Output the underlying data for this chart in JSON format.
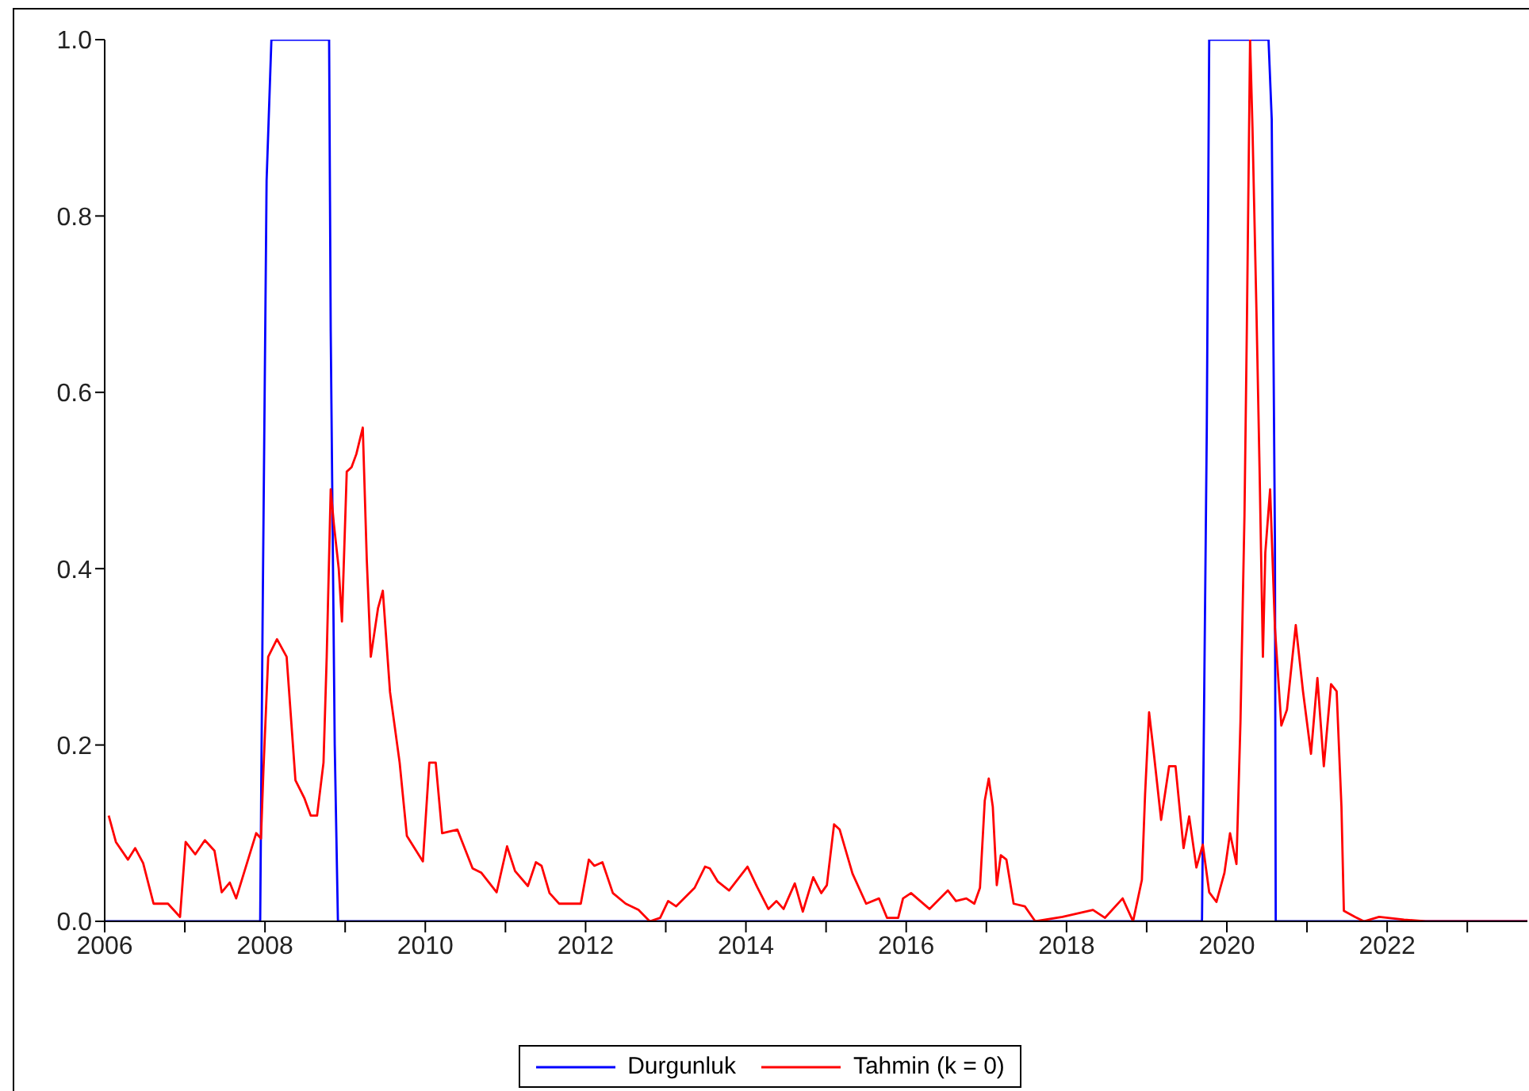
{
  "chart_data": {
    "type": "line",
    "xlim": [
      2006,
      2023.75
    ],
    "xticks": [
      2006,
      {
        "value": 2007,
        "label": null
      },
      2008,
      {
        "value": 2009,
        "label": null
      },
      2010,
      {
        "value": 2011,
        "label": null
      },
      2012,
      {
        "value": 2013,
        "label": null
      },
      2014,
      {
        "value": 2015,
        "label": null
      },
      2016,
      {
        "value": 2017,
        "label": null
      },
      2018,
      {
        "value": 2019,
        "label": null
      },
      2020,
      {
        "value": 2021,
        "label": null
      },
      2022,
      {
        "value": 2023,
        "label": null
      }
    ],
    "ylim": [
      0,
      1
    ],
    "yticks": [
      {
        "value": 0,
        "label": "0.0"
      },
      {
        "value": 0.2,
        "label": "0.2"
      },
      {
        "value": 0.4,
        "label": "0.4"
      },
      {
        "value": 0.6,
        "label": "0.6"
      },
      {
        "value": 0.8,
        "label": "0.8"
      },
      {
        "value": 1,
        "label": "1.0"
      }
    ],
    "legend": "bottom",
    "marker": "none",
    "line_style": "solid",
    "series": [
      {
        "name": "Durgunluk",
        "color": "#0000ff",
        "x": [
          2006,
          2007.94,
          2007.97,
          2008.02,
          2008.08,
          2008.8,
          2008.82,
          2008.87,
          2008.91,
          2019.69,
          2019.75,
          2019.78,
          2020.52,
          2020.56,
          2020.6,
          2020.61,
          2023.75
        ],
        "values": [
          0,
          0,
          0.34,
          0.84,
          1,
          1,
          0.67,
          0.2,
          0,
          0,
          0.56,
          1,
          1,
          0.91,
          0.43,
          0,
          0
        ]
      },
      {
        "name": "Tahmin (k = 0)",
        "color": "#ff0000",
        "x": [
          2006.05,
          2006.14,
          2006.29,
          2006.38,
          2006.48,
          2006.61,
          2006.79,
          2006.94,
          2007.01,
          2007.13,
          2007.25,
          2007.37,
          2007.46,
          2007.56,
          2007.64,
          2007.89,
          2007.95,
          2007.98,
          2008.04,
          2008.15,
          2008.27,
          2008.38,
          2008.49,
          2008.57,
          2008.65,
          2008.73,
          2008.77,
          2008.82,
          2008.86,
          2008.92,
          2008.96,
          2009.02,
          2009.08,
          2009.14,
          2009.22,
          2009.27,
          2009.32,
          2009.41,
          2009.47,
          2009.56,
          2009.68,
          2009.77,
          2009.97,
          2010.05,
          2010.13,
          2010.21,
          2010.4,
          2010.59,
          2010.7,
          2010.89,
          2011.02,
          2011.12,
          2011.28,
          2011.38,
          2011.45,
          2011.55,
          2011.67,
          2011.94,
          2012.04,
          2012.11,
          2012.21,
          2012.34,
          2012.5,
          2012.66,
          2012.8,
          2012.93,
          2013.03,
          2013.13,
          2013.36,
          2013.49,
          2013.55,
          2013.65,
          2013.79,
          2014.02,
          2014.14,
          2014.28,
          2014.38,
          2014.47,
          2014.61,
          2014.71,
          2014.84,
          2014.94,
          2015.01,
          2015.1,
          2015.17,
          2015.33,
          2015.5,
          2015.66,
          2015.76,
          2015.9,
          2015.96,
          2016.06,
          2016.29,
          2016.52,
          2016.62,
          2016.75,
          2016.85,
          2016.92,
          2016.98,
          2017.03,
          2017.08,
          2017.13,
          2017.18,
          2017.25,
          2017.34,
          2017.48,
          2017.61,
          2017.95,
          2018.33,
          2018.48,
          2018.7,
          2018.83,
          2018.94,
          2018.98,
          2019.03,
          2019.09,
          2019.18,
          2019.28,
          2019.36,
          2019.46,
          2019.53,
          2019.62,
          2019.7,
          2019.78,
          2019.87,
          2019.97,
          2020.04,
          2020.12,
          2020.17,
          2020.22,
          2020.25,
          2020.29,
          2020.32,
          2020.37,
          2020.41,
          2020.45,
          2020.48,
          2020.54,
          2020.6,
          2020.68,
          2020.75,
          2020.86,
          2020.95,
          2021.05,
          2021.13,
          2021.21,
          2021.3,
          2021.37,
          2021.43,
          2021.46,
          2021.6,
          2021.71,
          2021.9,
          2022.21,
          2022.48,
          2023.75
        ],
        "values": [
          0.12,
          0.09,
          0.07,
          0.083,
          0.066,
          0.02,
          0.02,
          0.005,
          0.09,
          0.076,
          0.092,
          0.08,
          0.033,
          0.044,
          0.026,
          0.1,
          0.094,
          0.17,
          0.3,
          0.32,
          0.3,
          0.16,
          0.14,
          0.12,
          0.12,
          0.18,
          0.3,
          0.49,
          0.45,
          0.4,
          0.34,
          0.51,
          0.515,
          0.53,
          0.56,
          0.41,
          0.3,
          0.355,
          0.375,
          0.26,
          0.18,
          0.097,
          0.068,
          0.18,
          0.18,
          0.1,
          0.104,
          0.06,
          0.055,
          0.033,
          0.085,
          0.057,
          0.04,
          0.067,
          0.063,
          0.032,
          0.02,
          0.02,
          0.07,
          0.063,
          0.067,
          0.032,
          0.02,
          0.013,
          0,
          0.004,
          0.023,
          0.017,
          0.038,
          0.062,
          0.06,
          0.045,
          0.035,
          0.062,
          0.039,
          0.014,
          0.023,
          0.014,
          0.043,
          0.011,
          0.05,
          0.032,
          0.041,
          0.11,
          0.104,
          0.054,
          0.02,
          0.026,
          0.004,
          0.004,
          0.026,
          0.032,
          0.014,
          0.035,
          0.023,
          0.026,
          0.02,
          0.038,
          0.137,
          0.162,
          0.13,
          0.041,
          0.075,
          0.07,
          0.02,
          0.017,
          0,
          0.005,
          0.013,
          0.004,
          0.026,
          0,
          0.047,
          0.144,
          0.237,
          0.19,
          0.115,
          0.176,
          0.176,
          0.083,
          0.119,
          0.061,
          0.087,
          0.033,
          0.022,
          0.055,
          0.1,
          0.065,
          0.226,
          0.46,
          0.675,
          1,
          0.9,
          0.69,
          0.505,
          0.3,
          0.418,
          0.49,
          0.333,
          0.222,
          0.24,
          0.336,
          0.261,
          0.19,
          0.276,
          0.176,
          0.269,
          0.261,
          0.13,
          0.012,
          0.005,
          0,
          0.005,
          0.002,
          0,
          0
        ]
      }
    ]
  }
}
